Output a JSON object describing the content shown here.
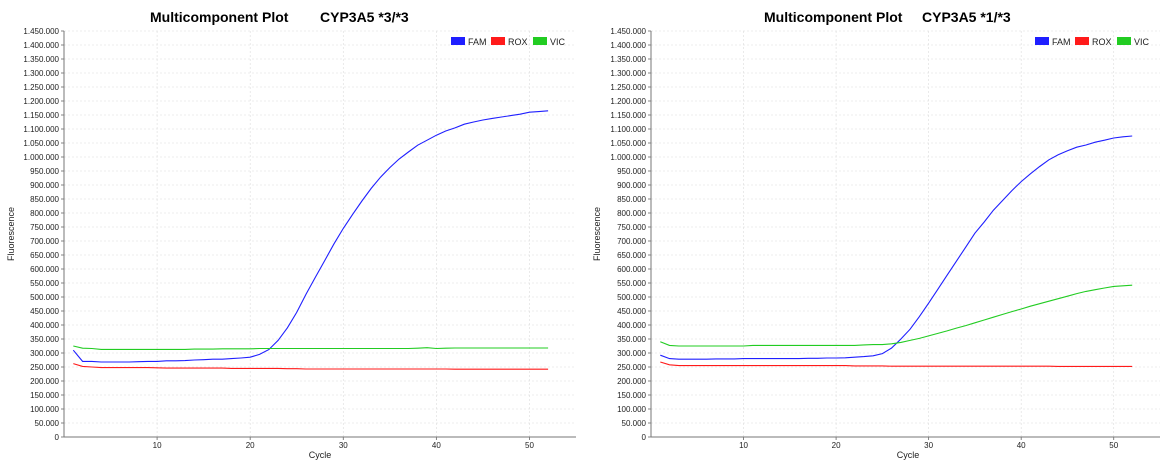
{
  "colors": {
    "FAM": "#1f1fff",
    "ROX": "#ff1a1a",
    "VIC": "#22cc22"
  },
  "chart_data": [
    {
      "type": "line",
      "title": "Multicomponent Plot",
      "subtitle": "CYP3A5 *3/*3",
      "xlabel": "Cycle",
      "ylabel": "Fluorescence",
      "xlim": [
        0,
        55
      ],
      "ylim": [
        0,
        1450000
      ],
      "grid": true,
      "legend_position": "top-right",
      "xticks": [
        "10",
        "20",
        "30",
        "40",
        "50"
      ],
      "yticks": [
        "0",
        "50.000",
        "100.000",
        "150.000",
        "200.000",
        "250.000",
        "300.000",
        "350.000",
        "400.000",
        "450.000",
        "500.000",
        "550.000",
        "600.000",
        "650.000",
        "700.000",
        "750.000",
        "800.000",
        "850.000",
        "900.000",
        "950.000",
        "1.000.000",
        "1.050.000",
        "1.100.000",
        "1.150.000",
        "1.200.000",
        "1.250.000",
        "1.300.000",
        "1.350.000",
        "1.400.000",
        "1.450.000"
      ],
      "x": [
        1,
        2,
        3,
        4,
        5,
        6,
        7,
        8,
        9,
        10,
        11,
        12,
        13,
        14,
        15,
        16,
        17,
        18,
        19,
        20,
        21,
        22,
        23,
        24,
        25,
        26,
        27,
        28,
        29,
        30,
        31,
        32,
        33,
        34,
        35,
        36,
        37,
        38,
        39,
        40,
        41,
        42,
        43,
        44,
        45,
        46,
        47,
        48,
        49,
        50,
        51,
        52
      ],
      "series": [
        {
          "name": "FAM",
          "color": "#1f1fff",
          "values": [
            310000,
            270000,
            270000,
            268000,
            268000,
            268000,
            268000,
            269000,
            270000,
            270000,
            272000,
            272000,
            273000,
            275000,
            276000,
            278000,
            278000,
            280000,
            282000,
            285000,
            295000,
            312000,
            345000,
            390000,
            445000,
            510000,
            570000,
            630000,
            690000,
            745000,
            795000,
            843000,
            888000,
            928000,
            962000,
            993000,
            1018000,
            1042000,
            1060000,
            1078000,
            1093000,
            1104000,
            1117000,
            1125000,
            1132000,
            1138000,
            1143000,
            1148000,
            1153000,
            1160000,
            1162000,
            1165000
          ]
        },
        {
          "name": "ROX",
          "color": "#ff1a1a",
          "values": [
            262000,
            252000,
            250000,
            248000,
            248000,
            248000,
            248000,
            248000,
            248000,
            247000,
            246000,
            246000,
            246000,
            246000,
            246000,
            246000,
            246000,
            245000,
            245000,
            245000,
            245000,
            245000,
            245000,
            244000,
            244000,
            243000,
            243000,
            243000,
            243000,
            243000,
            243000,
            243000,
            243000,
            243000,
            243000,
            243000,
            243000,
            243000,
            243000,
            243000,
            243000,
            242000,
            242000,
            242000,
            242000,
            242000,
            242000,
            242000,
            242000,
            242000,
            242000,
            242000
          ]
        },
        {
          "name": "VIC",
          "color": "#22cc22",
          "values": [
            325000,
            317000,
            316000,
            313000,
            313000,
            313000,
            313000,
            313000,
            313000,
            313000,
            313000,
            313000,
            313000,
            314000,
            314000,
            314000,
            315000,
            315000,
            315000,
            315000,
            316000,
            316000,
            316000,
            316000,
            316000,
            316000,
            316000,
            316000,
            316000,
            316000,
            316000,
            316000,
            316000,
            316000,
            316000,
            316000,
            316000,
            317000,
            319000,
            316000,
            317000,
            318000,
            318000,
            318000,
            318000,
            318000,
            318000,
            318000,
            318000,
            318000,
            318000,
            318000
          ]
        }
      ]
    },
    {
      "type": "line",
      "title": "Multicomponent Plot",
      "subtitle": "CYP3A5 *1/*3",
      "xlabel": "Cycle",
      "ylabel": "Fluorescence",
      "xlim": [
        0,
        55
      ],
      "ylim": [
        0,
        1450000
      ],
      "grid": true,
      "legend_position": "top-right",
      "xticks": [
        "10",
        "20",
        "30",
        "40",
        "50"
      ],
      "yticks": [
        "0",
        "50.000",
        "100.000",
        "150.000",
        "200.000",
        "250.000",
        "300.000",
        "350.000",
        "400.000",
        "450.000",
        "500.000",
        "550.000",
        "600.000",
        "650.000",
        "700.000",
        "750.000",
        "800.000",
        "850.000",
        "900.000",
        "950.000",
        "1.000.000",
        "1.050.000",
        "1.100.000",
        "1.150.000",
        "1.200.000",
        "1.250.000",
        "1.300.000",
        "1.350.000",
        "1.400.000",
        "1.450.000"
      ],
      "x": [
        1,
        2,
        3,
        4,
        5,
        6,
        7,
        8,
        9,
        10,
        11,
        12,
        13,
        14,
        15,
        16,
        17,
        18,
        19,
        20,
        21,
        22,
        23,
        24,
        25,
        26,
        27,
        28,
        29,
        30,
        31,
        32,
        33,
        34,
        35,
        36,
        37,
        38,
        39,
        40,
        41,
        42,
        43,
        44,
        45,
        46,
        47,
        48,
        49,
        50,
        51,
        52
      ],
      "series": [
        {
          "name": "FAM",
          "color": "#1f1fff",
          "values": [
            292000,
            280000,
            278000,
            278000,
            278000,
            278000,
            279000,
            279000,
            279000,
            280000,
            280000,
            280000,
            280000,
            280000,
            280000,
            280000,
            281000,
            281000,
            282000,
            282000,
            283000,
            285000,
            287000,
            290000,
            298000,
            318000,
            350000,
            385000,
            430000,
            478000,
            528000,
            578000,
            628000,
            678000,
            728000,
            768000,
            810000,
            845000,
            880000,
            912000,
            940000,
            966000,
            990000,
            1008000,
            1022000,
            1035000,
            1043000,
            1053000,
            1060000,
            1068000,
            1072000,
            1075000
          ]
        },
        {
          "name": "ROX",
          "color": "#ff1a1a",
          "values": [
            268000,
            258000,
            255000,
            255000,
            255000,
            255000,
            255000,
            255000,
            255000,
            255000,
            255000,
            255000,
            255000,
            255000,
            255000,
            255000,
            255000,
            255000,
            255000,
            255000,
            255000,
            254000,
            254000,
            254000,
            254000,
            253000,
            253000,
            253000,
            253000,
            253000,
            253000,
            253000,
            253000,
            253000,
            253000,
            253000,
            253000,
            253000,
            253000,
            253000,
            253000,
            253000,
            253000,
            252000,
            252000,
            252000,
            252000,
            252000,
            252000,
            252000,
            252000,
            252000
          ]
        },
        {
          "name": "VIC",
          "color": "#22cc22",
          "values": [
            340000,
            327000,
            325000,
            325000,
            325000,
            325000,
            325000,
            325000,
            325000,
            325000,
            327000,
            327000,
            327000,
            327000,
            327000,
            327000,
            327000,
            327000,
            327000,
            327000,
            327000,
            327000,
            329000,
            330000,
            330000,
            333000,
            338000,
            345000,
            352000,
            361000,
            370000,
            379000,
            389000,
            398000,
            408000,
            418000,
            428000,
            438000,
            448000,
            457000,
            467000,
            476000,
            485000,
            494000,
            503000,
            512000,
            520000,
            526000,
            532000,
            538000,
            540000,
            542000
          ]
        }
      ]
    }
  ]
}
